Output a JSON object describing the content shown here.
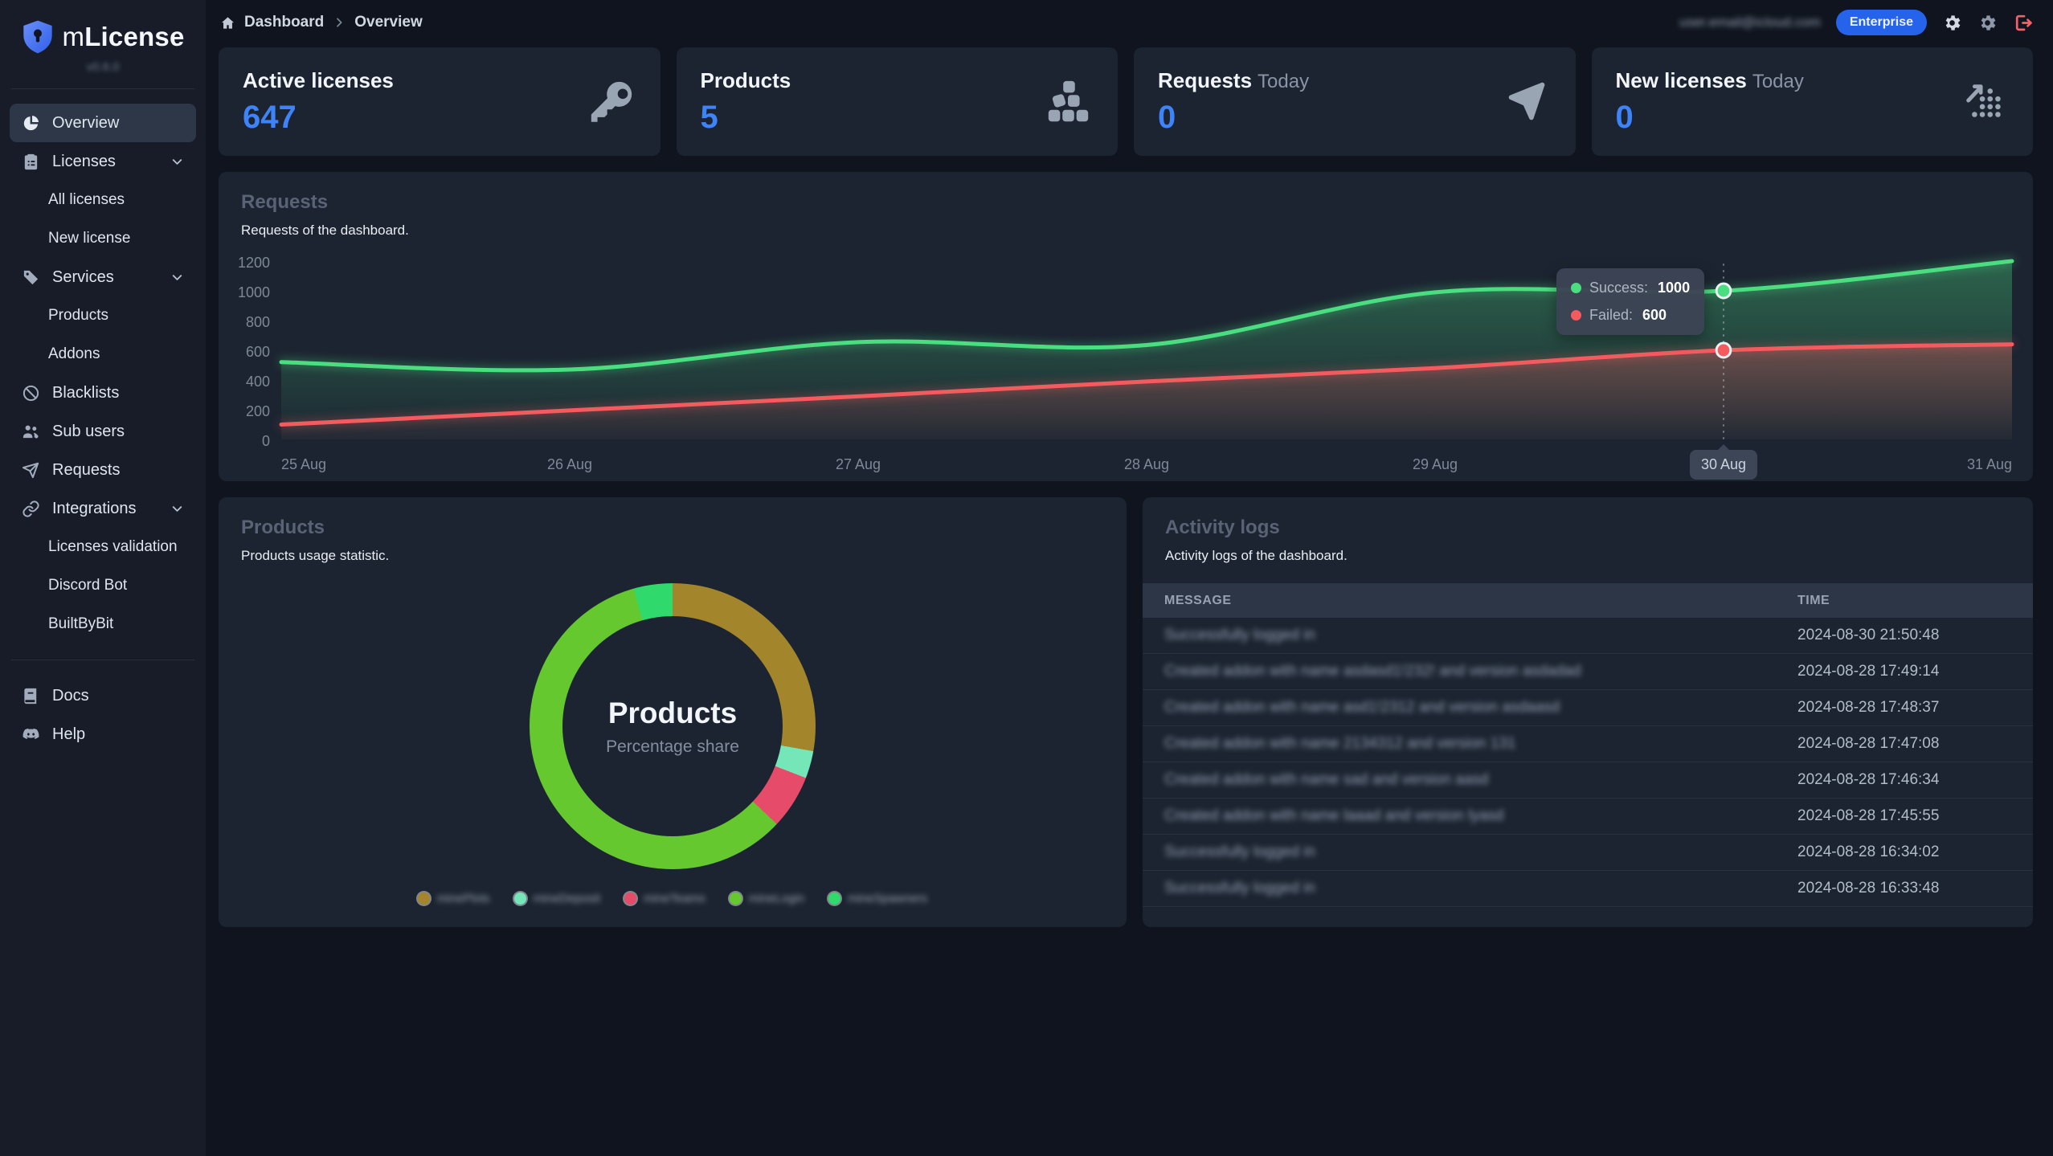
{
  "app": {
    "brand_prefix": "m",
    "brand_name": "License",
    "version": "v0.6.0",
    "version_blurred": true
  },
  "topbar": {
    "breadcrumb": [
      "Dashboard",
      "Overview"
    ],
    "email": "user.email@icloud.com",
    "email_blurred": true,
    "plan_badge": "Enterprise",
    "icons": [
      "gear-icon",
      "gear-icon",
      "logout-icon"
    ]
  },
  "colors": {
    "accent_blue": "#3e83f7",
    "badge_blue": "#2563eb",
    "success_green": "#4ade80",
    "failed_red": "#f45b5f",
    "card_bg": "#1c2431",
    "sidebar_bg": "#171c28",
    "page_bg": "#0f141e",
    "active_nav_bg": "#2d3748",
    "logout_red": "#f4616b"
  },
  "sidebar": {
    "items": [
      {
        "label": "Overview",
        "icon": "pie-chart",
        "active": true
      },
      {
        "label": "Licenses",
        "icon": "clipboard",
        "expandable": true
      },
      {
        "label": "All licenses",
        "child": true
      },
      {
        "label": "New license",
        "child": true
      },
      {
        "label": "Services",
        "icon": "tags",
        "expandable": true
      },
      {
        "label": "Products",
        "child": true
      },
      {
        "label": "Addons",
        "child": true
      },
      {
        "label": "Blacklists",
        "icon": "ban"
      },
      {
        "label": "Sub users",
        "icon": "users"
      },
      {
        "label": "Requests",
        "icon": "send"
      },
      {
        "label": "Integrations",
        "icon": "link",
        "expandable": true
      },
      {
        "label": "Licenses validation",
        "child": true
      },
      {
        "label": "Discord Bot",
        "child": true
      },
      {
        "label": "BuiltByBit",
        "child": true
      },
      {
        "label": "Docs",
        "icon": "book"
      },
      {
        "label": "Help",
        "icon": "discord"
      }
    ]
  },
  "stats": {
    "cards": [
      {
        "title": "Active licenses",
        "suffix": "",
        "value": "647",
        "icon": "key-icon"
      },
      {
        "title": "Products",
        "suffix": "",
        "value": "5",
        "icon": "cubes-icon"
      },
      {
        "title": "Requests",
        "suffix": "Today",
        "value": "0",
        "icon": "send-icon"
      },
      {
        "title": "New licenses",
        "suffix": "Today",
        "value": "0",
        "icon": "trend-icon"
      }
    ]
  },
  "requests_card": {
    "title": "Requests",
    "subtitle": "Requests of the dashboard."
  },
  "products_card": {
    "title": "Products",
    "subtitle": "Products usage statistic.",
    "center_title": "Products",
    "center_subtitle": "Percentage share",
    "legend_blurred": true
  },
  "logs_card": {
    "title": "Activity logs",
    "subtitle": "Activity logs of the dashboard.",
    "columns": [
      "MESSAGE",
      "TIME"
    ],
    "messages_blurred": true,
    "rows": [
      {
        "message": "Successfully logged in",
        "time": "2024-08-30 21:50:48"
      },
      {
        "message": "Created addon with name asdasd1!232! and version asdadad",
        "time": "2024-08-28 17:49:14"
      },
      {
        "message": "Created addon with name asd1!2312 and version asdaasd",
        "time": "2024-08-28 17:48:37"
      },
      {
        "message": "Created addon with name 2134312 and version 131",
        "time": "2024-08-28 17:47:08"
      },
      {
        "message": "Created addon with name sad and version aasd",
        "time": "2024-08-28 17:46:34"
      },
      {
        "message": "Created addon with name laaad and version lyasd",
        "time": "2024-08-28 17:45:55"
      },
      {
        "message": "Successfully logged in",
        "time": "2024-08-28 16:34:02"
      },
      {
        "message": "Successfully logged in",
        "time": "2024-08-28 16:33:48"
      }
    ]
  },
  "chart_data": [
    {
      "type": "area",
      "title": "Requests",
      "x": [
        "25 Aug",
        "26 Aug",
        "27 Aug",
        "28 Aug",
        "29 Aug",
        "30 Aug",
        "31 Aug"
      ],
      "ylim": [
        0,
        1200
      ],
      "yticks": [
        "1200",
        "1000",
        "800",
        "600",
        "400",
        "200",
        "0"
      ],
      "grid": false,
      "legend_position": "none",
      "series": [
        {
          "name": "Success",
          "color": "#4ade80",
          "values": [
            520,
            470,
            655,
            635,
            990,
            1000,
            1200
          ]
        },
        {
          "name": "Failed",
          "color": "#f45b5f",
          "values": [
            100,
            195,
            290,
            390,
            480,
            600,
            640
          ]
        }
      ],
      "cursor": {
        "index": 5,
        "x_label": "30 Aug",
        "rows": [
          {
            "label": "Success:",
            "value": "1000"
          },
          {
            "label": "Failed:",
            "value": "600"
          }
        ]
      }
    },
    {
      "type": "pie",
      "title": "Products",
      "subtitle": "Percentage share",
      "segments": [
        {
          "label": "minePlots",
          "value": 27.8,
          "color": "#a3862b",
          "label_blurred": true
        },
        {
          "label": "mineDeposit",
          "value": 3.1,
          "color": "#74e6b8",
          "label_blurred": true
        },
        {
          "label": "mineTeams",
          "value": 6.1,
          "color": "#e64c6a",
          "label_blurred": true
        },
        {
          "label": "mineLogin",
          "value": 58.6,
          "color": "#65c82e",
          "label_blurred": true
        },
        {
          "label": "mineSpawners",
          "value": 4.4,
          "color": "#2fd96b",
          "label_blurred": true
        }
      ]
    }
  ]
}
